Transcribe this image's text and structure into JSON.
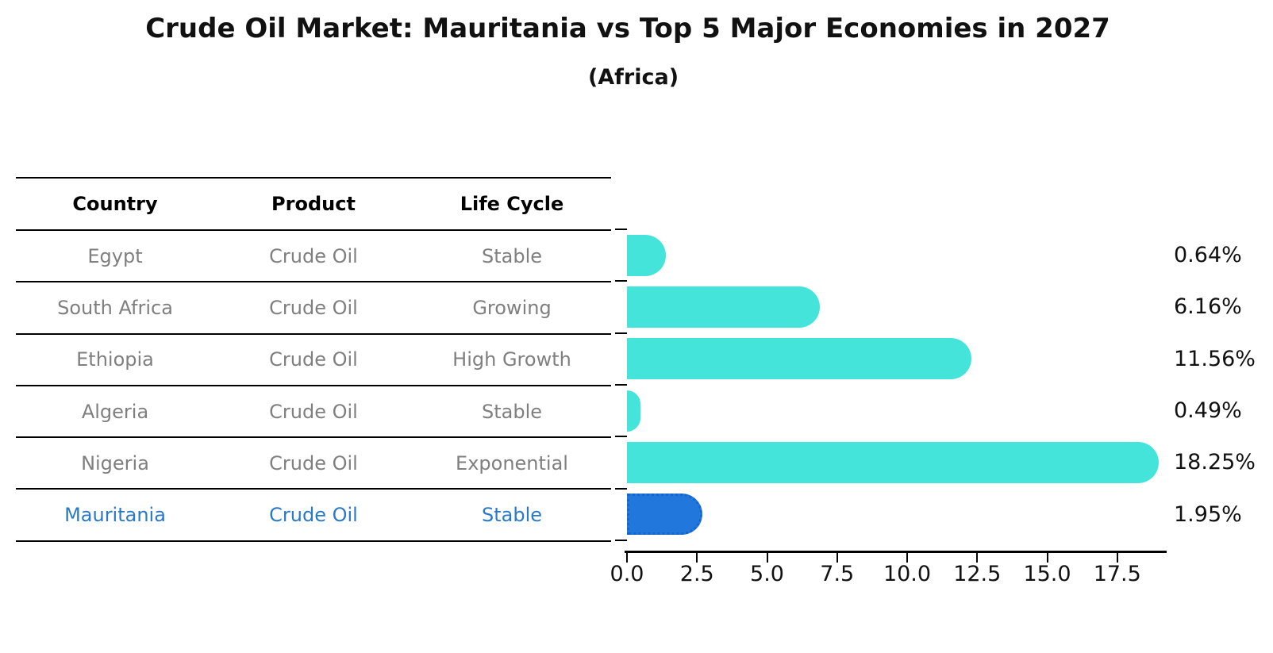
{
  "table": {
    "headers": [
      "Country",
      "Product",
      "Life Cycle"
    ],
    "rows": [
      [
        "Egypt",
        "Crude Oil",
        "Stable"
      ],
      [
        "South Africa",
        "Crude Oil",
        "Growing"
      ],
      [
        "Ethiopia",
        "Crude Oil",
        "High Growth"
      ],
      [
        "Algeria",
        "Crude Oil",
        "Stable"
      ],
      [
        "Nigeria",
        "Crude Oil",
        "Exponential"
      ],
      [
        "Mauritania",
        "Crude Oil",
        "Stable"
      ]
    ],
    "highlight_row_index": 5
  },
  "chart_data": {
    "type": "bar",
    "orientation": "horizontal",
    "title": "Crude Oil Market: Mauritania vs Top 5 Major Economies in 2027",
    "subtitle": "(Africa)",
    "categories": [
      "Egypt",
      "South Africa",
      "Ethiopia",
      "Algeria",
      "Nigeria",
      "Mauritania"
    ],
    "values": [
      0.64,
      6.16,
      11.56,
      0.49,
      18.25,
      1.95
    ],
    "value_labels": [
      "0.64%",
      "6.16%",
      "11.56%",
      "0.49%",
      "18.25%",
      "1.95%"
    ],
    "xlim": [
      0,
      19.3
    ],
    "x_tick_values": [
      0,
      2.5,
      5,
      7.5,
      10,
      12.5,
      15,
      17.5
    ],
    "x_tick_labels": [
      "0.0",
      "2.5",
      "5.0",
      "7.5",
      "10.0",
      "12.5",
      "15.0",
      "17.5"
    ],
    "grid": false,
    "legend": "none",
    "highlight_index": 5,
    "colors": {
      "bar": "#45e4db",
      "highlight_bar": "#2277dc",
      "highlight_border": "#1565ce",
      "highlight_text": "#2979c9",
      "row_text": "#7f7f7f",
      "header_text": "#000000",
      "axis": "#000000",
      "value_label": "#111111"
    }
  }
}
